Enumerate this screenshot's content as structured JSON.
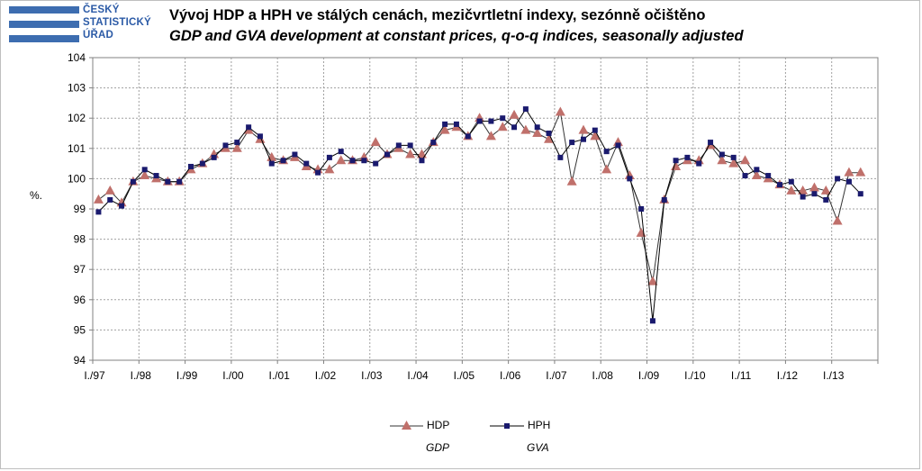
{
  "logo": {
    "lines": [
      "ČESKÝ",
      "STATISTICKÝ",
      "ÚŘAD"
    ]
  },
  "title_cz": "Vývoj HDP a HPH ve stálých cenách, mezičvrtletní indexy, sezónně očištěno",
  "title_en": "GDP and GVA development at constant prices, q-o-q indices, seasonally adjusted",
  "colors": {
    "hdp": "#c0706b",
    "hph": "#1a1a6e",
    "grid": "#a0a0a0"
  },
  "legend": {
    "hdp_label": "HDP",
    "hdp_sub": "GDP",
    "hph_label": "HPH",
    "hph_sub": "GVA"
  },
  "chart_data": {
    "type": "line",
    "ylabel": "%.",
    "ylim": [
      94,
      104
    ],
    "yticks": [
      "94",
      "95",
      "96",
      "97",
      "98",
      "99",
      "100",
      "101",
      "102",
      "103",
      "104"
    ],
    "xtick_labels": [
      "I./97",
      "I./98",
      "I./99",
      "I./00",
      "I./01",
      "I./02",
      "I./03",
      "I./04",
      "I./05",
      "I./06",
      "I./07",
      "I./08",
      "I./09",
      "I./10",
      "I./11",
      "I./12",
      "I./13"
    ],
    "grid": true,
    "legend_position": "bottom",
    "x": [
      "I./97",
      "II./97",
      "III./97",
      "IV./97",
      "I./98",
      "II./98",
      "III./98",
      "IV./98",
      "I./99",
      "II./99",
      "III./99",
      "IV./99",
      "I./00",
      "II./00",
      "III./00",
      "IV./00",
      "I./01",
      "II./01",
      "III./01",
      "IV./01",
      "I./02",
      "II./02",
      "III./02",
      "IV./02",
      "I./03",
      "II./03",
      "III./03",
      "IV./03",
      "I./04",
      "II./04",
      "III./04",
      "IV./04",
      "I./05",
      "II./05",
      "III./05",
      "IV./05",
      "I./06",
      "II./06",
      "III./06",
      "IV./06",
      "I./07",
      "II./07",
      "III./07",
      "IV./07",
      "I./08",
      "II./08",
      "III./08",
      "IV./08",
      "I./09",
      "II./09",
      "III./09",
      "IV./09",
      "I./10",
      "II./10",
      "III./10",
      "IV./10",
      "I./11",
      "II./11",
      "III./11",
      "IV./11",
      "I./12",
      "II./12",
      "III./12",
      "IV./12",
      "I./13",
      "II./13",
      "III./13"
    ],
    "series": [
      {
        "name": "HDP",
        "marker": "triangle",
        "values": [
          99.3,
          99.6,
          99.2,
          99.9,
          100.1,
          100.0,
          99.9,
          99.9,
          100.3,
          100.5,
          100.8,
          101.0,
          101.0,
          101.6,
          101.3,
          100.7,
          100.6,
          100.7,
          100.4,
          100.3,
          100.3,
          100.6,
          100.6,
          100.7,
          101.2,
          100.8,
          101.0,
          100.8,
          100.8,
          101.2,
          101.6,
          101.7,
          101.4,
          102.0,
          101.4,
          101.7,
          102.1,
          101.6,
          101.5,
          101.3,
          102.2,
          99.9,
          101.6,
          101.4,
          100.3,
          101.2,
          100.1,
          98.2,
          96.6,
          99.3,
          100.4,
          100.6,
          100.6,
          101.1,
          100.6,
          100.5,
          100.6,
          100.1,
          100.0,
          99.8,
          99.6,
          99.6,
          99.7,
          99.6,
          98.6,
          100.2,
          100.2
        ]
      },
      {
        "name": "HPH",
        "marker": "square",
        "values": [
          98.9,
          99.3,
          99.1,
          99.9,
          100.3,
          100.1,
          99.9,
          99.9,
          100.4,
          100.5,
          100.7,
          101.1,
          101.2,
          101.7,
          101.4,
          100.5,
          100.6,
          100.8,
          100.5,
          100.2,
          100.7,
          100.9,
          100.6,
          100.6,
          100.5,
          100.8,
          101.1,
          101.1,
          100.6,
          101.2,
          101.8,
          101.8,
          101.4,
          101.9,
          101.9,
          102.0,
          101.7,
          102.3,
          101.7,
          101.5,
          100.7,
          101.2,
          101.3,
          101.6,
          100.9,
          101.1,
          100.0,
          99.0,
          95.3,
          99.3,
          100.6,
          100.7,
          100.5,
          101.2,
          100.8,
          100.7,
          100.1,
          100.3,
          100.1,
          99.8,
          99.9,
          99.4,
          99.5,
          99.3,
          100.0,
          99.9,
          99.5
        ]
      }
    ]
  }
}
